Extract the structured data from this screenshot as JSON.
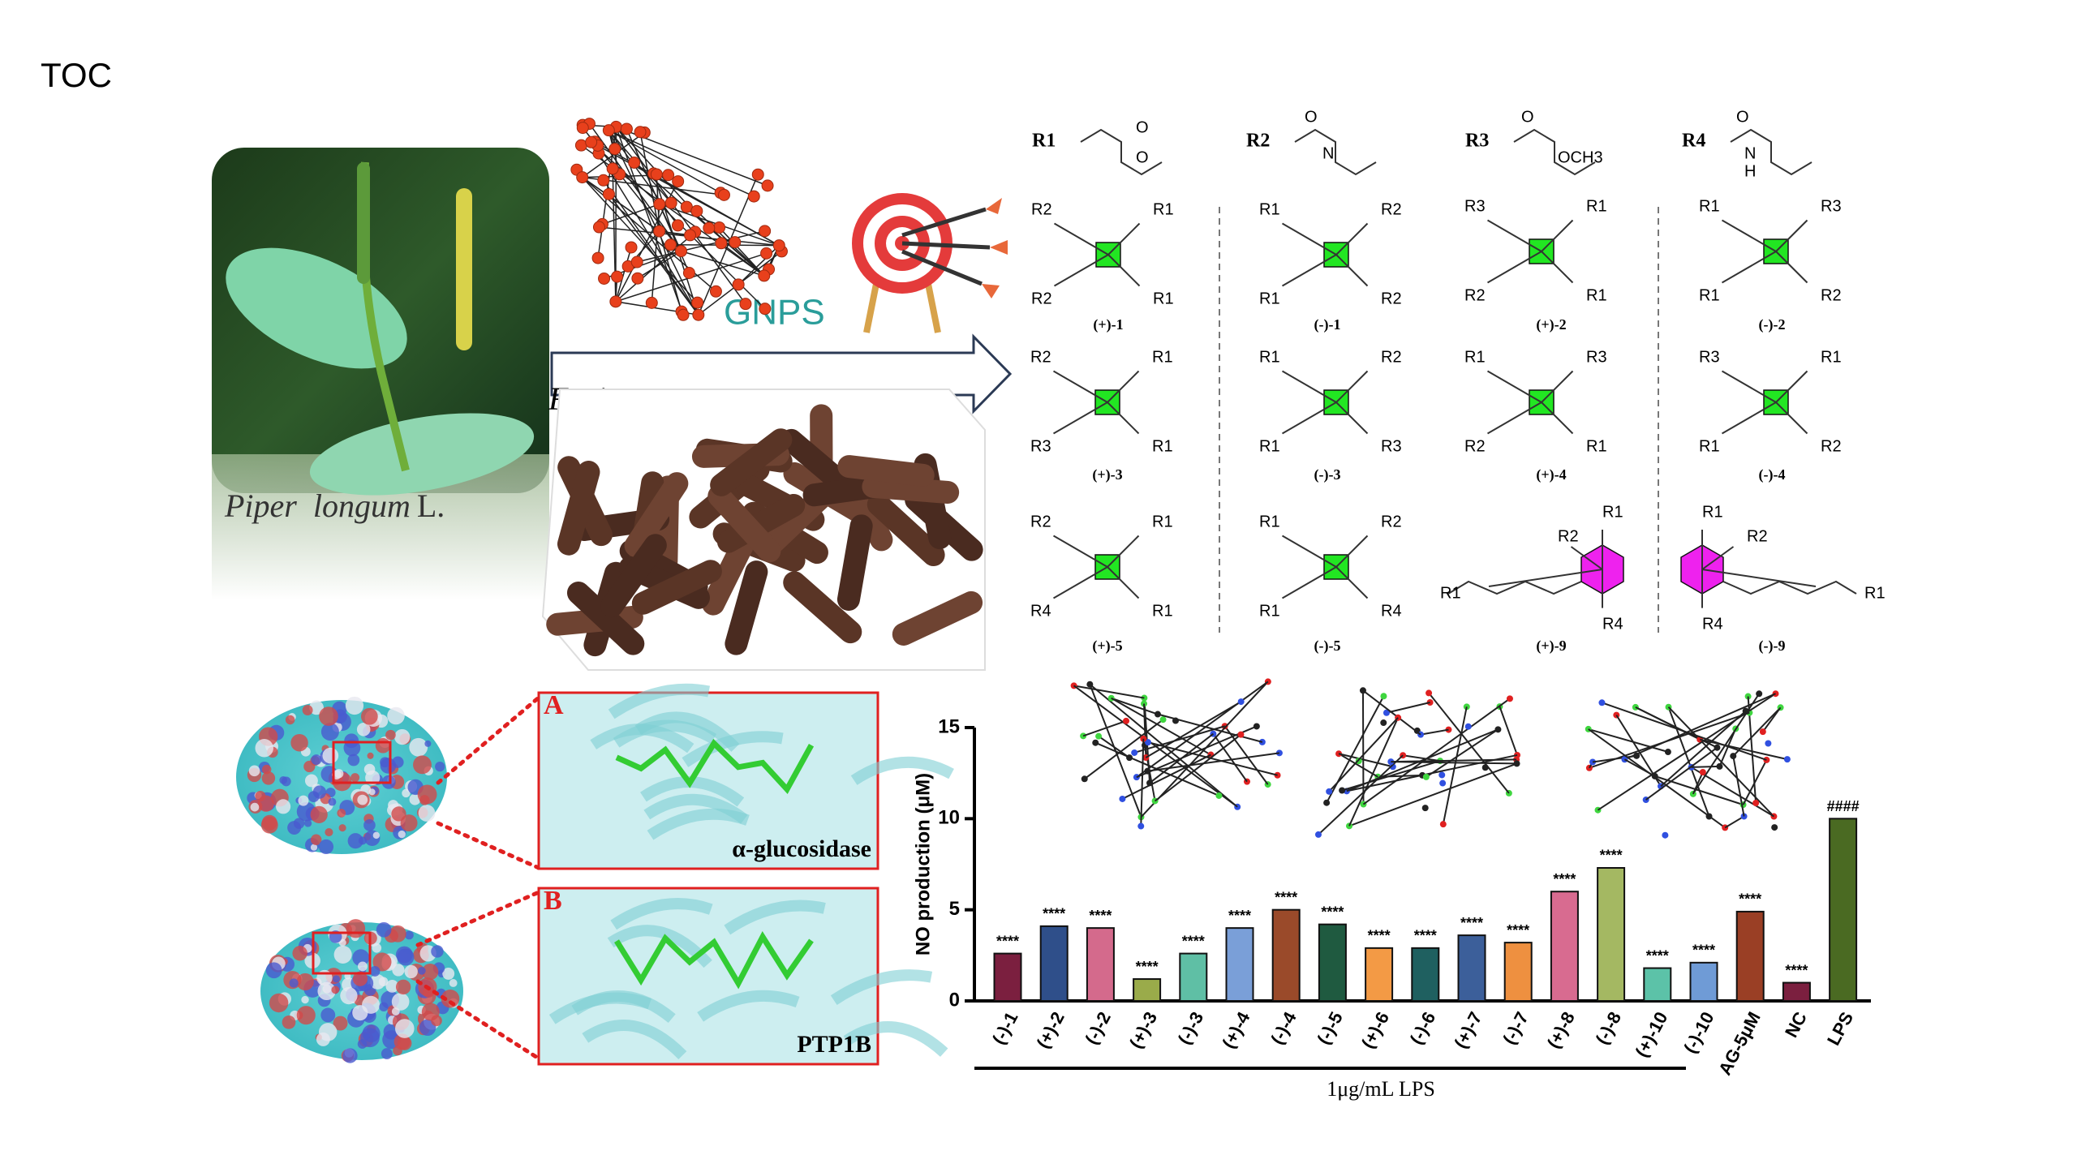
{
  "header": {
    "title": "TOC"
  },
  "plant": {
    "genus": "Piper",
    "species": "longum",
    "authority": "L."
  },
  "flow": {
    "source": "Fruits",
    "method": "GNPS"
  },
  "substituents": [
    {
      "label": "R1",
      "atoms": [
        "O",
        "O"
      ]
    },
    {
      "label": "R2",
      "atoms": [
        "O",
        "N"
      ]
    },
    {
      "label": "R3",
      "atoms": [
        "O",
        "OCH3"
      ]
    },
    {
      "label": "R4",
      "atoms": [
        "O",
        "N",
        "H"
      ]
    }
  ],
  "compounds": [
    {
      "name": "(+)-1",
      "core": "square",
      "groups": [
        "R2",
        "R1",
        "R2",
        "R1"
      ]
    },
    {
      "name": "(-)-1",
      "core": "square",
      "groups": [
        "R1",
        "R2",
        "R1",
        "R2"
      ]
    },
    {
      "name": "(+)-2",
      "core": "square",
      "groups": [
        "R3",
        "R1",
        "R2",
        "R1"
      ]
    },
    {
      "name": "(-)-2",
      "core": "square",
      "groups": [
        "R1",
        "R3",
        "R1",
        "R2"
      ]
    },
    {
      "name": "(+)-3",
      "core": "square",
      "groups": [
        "R2",
        "R1",
        "R3",
        "R1"
      ]
    },
    {
      "name": "(-)-3",
      "core": "square",
      "groups": [
        "R1",
        "R2",
        "R1",
        "R3"
      ]
    },
    {
      "name": "(+)-4",
      "core": "square",
      "groups": [
        "R1",
        "R3",
        "R2",
        "R1"
      ]
    },
    {
      "name": "(-)-4",
      "core": "square",
      "groups": [
        "R3",
        "R1",
        "R1",
        "R2"
      ]
    },
    {
      "name": "(+)-5",
      "core": "square",
      "groups": [
        "R2",
        "R1",
        "R4",
        "R1"
      ]
    },
    {
      "name": "(-)-5",
      "core": "square",
      "groups": [
        "R1",
        "R2",
        "R1",
        "R4"
      ]
    },
    {
      "name": "(+)-9",
      "core": "hexagon",
      "groups": [
        "R1",
        "R2",
        "R4",
        "R1"
      ]
    },
    {
      "name": "(-)-9",
      "core": "hexagon",
      "groups": [
        "R1",
        "R2",
        "R4",
        "R1"
      ]
    }
  ],
  "docking": {
    "panels": [
      {
        "letter": "A",
        "target": "α-glucosidase"
      },
      {
        "letter": "B",
        "target": "PTP1B"
      }
    ]
  },
  "chart_data": {
    "type": "bar",
    "ylabel": "NO production (μM)",
    "group_label": "1μg/mL LPS",
    "categories": [
      "(-)-1",
      "(+)-2",
      "(-)-2",
      "(+)-3",
      "(-)-3",
      "(+)-4",
      "(-)-4",
      "(-)-5",
      "(+)-6",
      "(-)-6",
      "(+)-7",
      "(-)-7",
      "(+)-8",
      "(-)-8",
      "(+)-10",
      "(-)-10",
      "AG-5μM",
      "NC",
      "LPS"
    ],
    "values": [
      2.6,
      4.1,
      4.0,
      1.2,
      2.6,
      4.0,
      5.0,
      4.2,
      2.9,
      2.9,
      3.6,
      3.2,
      6.0,
      7.3,
      1.8,
      2.1,
      4.9,
      1.0,
      10.0
    ],
    "annotations": [
      "****",
      "****",
      "****",
      "****",
      "****",
      "****",
      "****",
      "****",
      "****",
      "****",
      "****",
      "****",
      "****",
      "****",
      "****",
      "****",
      "****",
      "****",
      "####"
    ],
    "colors": [
      "#7b1f3f",
      "#2f4f8a",
      "#d46a8c",
      "#9aab4a",
      "#5fbfa5",
      "#7a9fd8",
      "#9a4a2a",
      "#1f5a40",
      "#f39a45",
      "#1f6060",
      "#3c5f9a",
      "#ee9040",
      "#d86b90",
      "#a4b862",
      "#5cc2a8",
      "#6f9bd6",
      "#9a3f25",
      "#7b1f3f",
      "#4a6a22"
    ],
    "ylim": [
      0,
      15
    ],
    "yticks": [
      0,
      5,
      10,
      15
    ]
  }
}
